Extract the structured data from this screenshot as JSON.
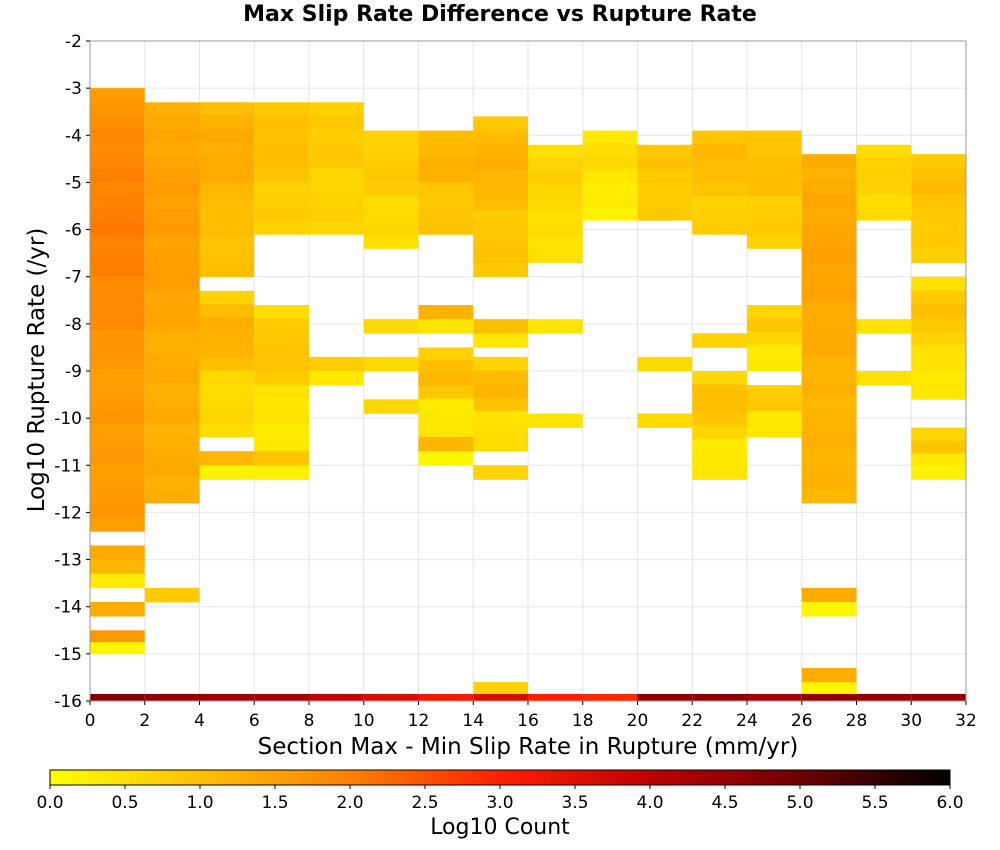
{
  "chart_data": {
    "type": "heatmap",
    "title": "Max Slip Rate Difference vs Rupture Rate",
    "xlabel": "Section Max - Min Slip Rate in Rupture (mm/yr)",
    "ylabel": "Log10 Rupture Rate (/yr)",
    "xlim": [
      0,
      32
    ],
    "ylim": [
      -16,
      -2
    ],
    "x_ticks": [
      0,
      2,
      4,
      6,
      8,
      10,
      12,
      14,
      16,
      18,
      20,
      22,
      24,
      26,
      28,
      30,
      32
    ],
    "y_ticks": [
      -2,
      -3,
      -4,
      -5,
      -6,
      -7,
      -8,
      -9,
      -10,
      -11,
      -12,
      -13,
      -14,
      -15,
      -16
    ],
    "x_bin_width": 2,
    "y_bin_height": 0.286,
    "grid": true,
    "colorbar": {
      "label": "Log10 Count",
      "min": 0.0,
      "max": 6.0,
      "ticks": [
        "0.0",
        "0.5",
        "1.0",
        "1.5",
        "2.0",
        "2.5",
        "3.0",
        "3.5",
        "4.0",
        "4.5",
        "5.0",
        "5.5",
        "6.0"
      ],
      "position": "bottom",
      "colormap": [
        "#ffff00",
        "#ffc000",
        "#ff8000",
        "#ff2000",
        "#c00000",
        "#700000",
        "#000000"
      ]
    },
    "columns": [
      {
        "x": 0,
        "segments": [
          [
            -3.0,
            -12.4,
            1.6
          ],
          [
            -12.7,
            -13.6,
            0.3
          ],
          [
            -13.9,
            -14.2,
            0.7
          ],
          [
            -14.5,
            -15.0,
            0.2
          ]
        ],
        "peak": 2.1,
        "bottom": 4.7
      },
      {
        "x": 2,
        "segments": [
          [
            -3.3,
            -11.8,
            1.3
          ],
          [
            -13.6,
            -13.9,
            0.2
          ]
        ],
        "peak": 1.6,
        "bottom": 4.5
      },
      {
        "x": 4,
        "segments": [
          [
            -3.3,
            -7.0,
            1.0
          ],
          [
            -7.3,
            -10.4,
            0.6
          ],
          [
            -10.7,
            -11.3,
            0.2
          ]
        ],
        "peak": 1.4,
        "bottom": 4.4
      },
      {
        "x": 6,
        "segments": [
          [
            -3.3,
            -6.1,
            0.8
          ],
          [
            -7.6,
            -10.7,
            0.4
          ],
          [
            -10.7,
            -11.3,
            0.2
          ]
        ],
        "peak": 1.1,
        "bottom": 4.3
      },
      {
        "x": 8,
        "segments": [
          [
            -3.3,
            -6.1,
            0.7
          ],
          [
            -8.7,
            -9.3,
            0.3
          ]
        ],
        "peak": 0.9,
        "bottom": 3.9
      },
      {
        "x": 10,
        "segments": [
          [
            -3.9,
            -6.4,
            0.6
          ],
          [
            -7.9,
            -8.2,
            0.2
          ],
          [
            -8.7,
            -9.0,
            0.2
          ],
          [
            -9.6,
            -9.9,
            0.3
          ]
        ],
        "peak": 0.9,
        "bottom": 3.6
      },
      {
        "x": 12,
        "segments": [
          [
            -3.9,
            -6.1,
            0.9
          ],
          [
            -7.6,
            -8.2,
            0.5
          ],
          [
            -8.5,
            -10.4,
            0.4
          ],
          [
            -10.4,
            -11.0,
            0.2
          ]
        ],
        "peak": 1.3,
        "bottom": 3.2
      },
      {
        "x": 14,
        "segments": [
          [
            -3.6,
            -7.0,
            0.9
          ],
          [
            -7.9,
            -8.5,
            0.4
          ],
          [
            -8.7,
            -10.7,
            0.5
          ],
          [
            -11.0,
            -11.3,
            0.2
          ],
          [
            -15.6,
            -15.9,
            0.3
          ]
        ],
        "peak": 1.3,
        "bottom": 3.6
      },
      {
        "x": 16,
        "segments": [
          [
            -4.2,
            -6.7,
            0.5
          ],
          [
            -7.9,
            -8.2,
            0.2
          ],
          [
            -9.9,
            -10.2,
            0.2
          ]
        ],
        "peak": 0.8,
        "bottom": 3.0
      },
      {
        "x": 18,
        "segments": [
          [
            -3.9,
            -5.8,
            0.3
          ]
        ],
        "peak": 0.6,
        "bottom": 2.9
      },
      {
        "x": 20,
        "segments": [
          [
            -4.2,
            -5.8,
            0.8
          ],
          [
            -8.7,
            -9.0,
            0.2
          ],
          [
            -9.9,
            -10.2,
            0.2
          ]
        ],
        "peak": 1.0,
        "bottom": 4.6
      },
      {
        "x": 22,
        "segments": [
          [
            -3.9,
            -6.1,
            0.8
          ],
          [
            -8.2,
            -8.5,
            0.2
          ],
          [
            -9.0,
            -11.3,
            0.4
          ]
        ],
        "peak": 1.2,
        "bottom": 4.6
      },
      {
        "x": 24,
        "segments": [
          [
            -3.9,
            -6.4,
            0.8
          ],
          [
            -7.6,
            -9.0,
            0.3
          ],
          [
            -9.3,
            -10.4,
            0.4
          ]
        ],
        "peak": 1.1,
        "bottom": 4.3
      },
      {
        "x": 26,
        "segments": [
          [
            -4.4,
            -11.8,
            1.2
          ],
          [
            -13.6,
            -14.2,
            0.2
          ],
          [
            -15.3,
            -15.9,
            0.2
          ]
        ],
        "peak": 1.5,
        "bottom": 4.6
      },
      {
        "x": 28,
        "segments": [
          [
            -4.2,
            -5.8,
            0.6
          ],
          [
            -7.9,
            -8.2,
            0.3
          ],
          [
            -9.0,
            -9.3,
            0.3
          ]
        ],
        "peak": 0.8,
        "bottom": 4.5
      },
      {
        "x": 30,
        "segments": [
          [
            -4.4,
            -6.7,
            0.8
          ],
          [
            -7.0,
            -9.6,
            0.4
          ],
          [
            -10.2,
            -11.3,
            0.3
          ]
        ],
        "peak": 1.1,
        "bottom": 4.5
      }
    ]
  }
}
